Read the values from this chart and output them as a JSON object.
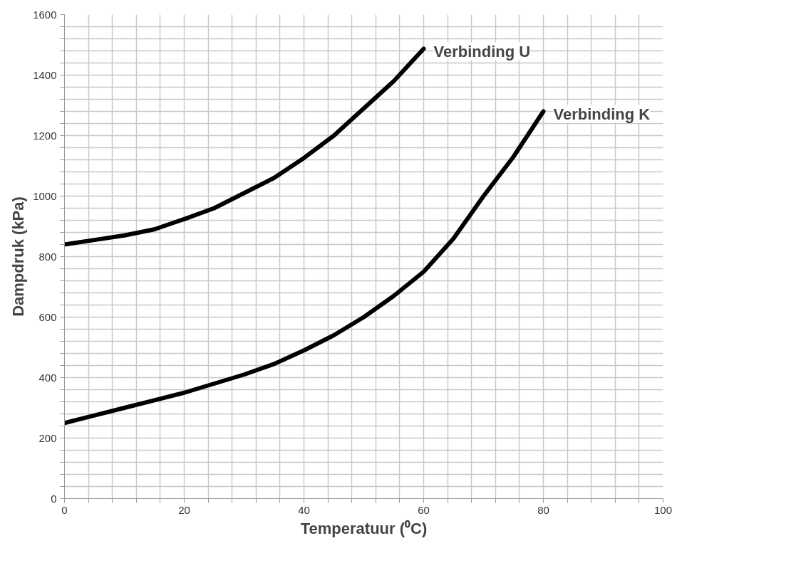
{
  "chart_data": {
    "type": "line",
    "xlabel": "Temperatuur (⁰C)",
    "ylabel": "Dampdruk (kPa)",
    "x": [
      0,
      5,
      10,
      15,
      20,
      25,
      30,
      35,
      40,
      45,
      50,
      55,
      60,
      65,
      70,
      75,
      80
    ],
    "series": [
      {
        "name": "Verbinding U",
        "color": "#000000",
        "values": [
          840,
          855,
          870,
          890,
          924,
          960,
          1010,
          1060,
          1126,
          1200,
          1290,
          1380,
          1487,
          null,
          null,
          null,
          null
        ]
      },
      {
        "name": "Verbinding K",
        "color": "#000000",
        "values": [
          250,
          275,
          300,
          325,
          350,
          380,
          410,
          445,
          490,
          540,
          600,
          670,
          750,
          860,
          1000,
          1130,
          1280
        ]
      }
    ],
    "xlim": [
      0,
      100
    ],
    "ylim": [
      0,
      1600
    ],
    "xticks": [
      0,
      {
        "value": 4,
        "label": null
      },
      {
        "value": 8,
        "label": null
      },
      {
        "value": 12,
        "label": null
      },
      {
        "value": 16,
        "label": null
      },
      20,
      {
        "value": 24,
        "label": null
      },
      {
        "value": 28,
        "label": null
      },
      {
        "value": 32,
        "label": null
      },
      {
        "value": 36,
        "label": null
      },
      40,
      {
        "value": 44,
        "label": null
      },
      {
        "value": 48,
        "label": null
      },
      {
        "value": 52,
        "label": null
      },
      {
        "value": 56,
        "label": null
      },
      60,
      {
        "value": 64,
        "label": null
      },
      {
        "value": 68,
        "label": null
      },
      {
        "value": 72,
        "label": null
      },
      {
        "value": 76,
        "label": null
      },
      80,
      {
        "value": 84,
        "label": null
      },
      {
        "value": 88,
        "label": null
      },
      {
        "value": 92,
        "label": null
      },
      {
        "value": 96,
        "label": null
      },
      100
    ],
    "yticks": [
      0,
      {
        "value": 40,
        "label": null
      },
      {
        "value": 80,
        "label": null
      },
      {
        "value": 120,
        "label": null
      },
      {
        "value": 160,
        "label": null
      },
      200,
      {
        "value": 240,
        "label": null
      },
      {
        "value": 280,
        "label": null
      },
      {
        "value": 320,
        "label": null
      },
      {
        "value": 360,
        "label": null
      },
      400,
      {
        "value": 440,
        "label": null
      },
      {
        "value": 480,
        "label": null
      },
      {
        "value": 520,
        "label": null
      },
      {
        "value": 560,
        "label": null
      },
      600,
      {
        "value": 640,
        "label": null
      },
      {
        "value": 680,
        "label": null
      },
      {
        "value": 720,
        "label": null
      },
      {
        "value": 760,
        "label": null
      },
      800,
      {
        "value": 840,
        "label": null
      },
      {
        "value": 880,
        "label": null
      },
      {
        "value": 920,
        "label": null
      },
      {
        "value": 960,
        "label": null
      },
      1000,
      {
        "value": 1040,
        "label": null
      },
      {
        "value": 1080,
        "label": null
      },
      {
        "value": 1120,
        "label": null
      },
      {
        "value": 1160,
        "label": null
      },
      1200,
      {
        "value": 1240,
        "label": null
      },
      {
        "value": 1280,
        "label": null
      },
      {
        "value": 1320,
        "label": null
      },
      {
        "value": 1360,
        "label": null
      },
      1400,
      {
        "value": 1440,
        "label": null
      },
      {
        "value": 1480,
        "label": null
      },
      {
        "value": 1520,
        "label": null
      },
      {
        "value": 1560,
        "label": null
      },
      1600
    ],
    "grid": true,
    "marker": "none",
    "line_style": "solid"
  }
}
